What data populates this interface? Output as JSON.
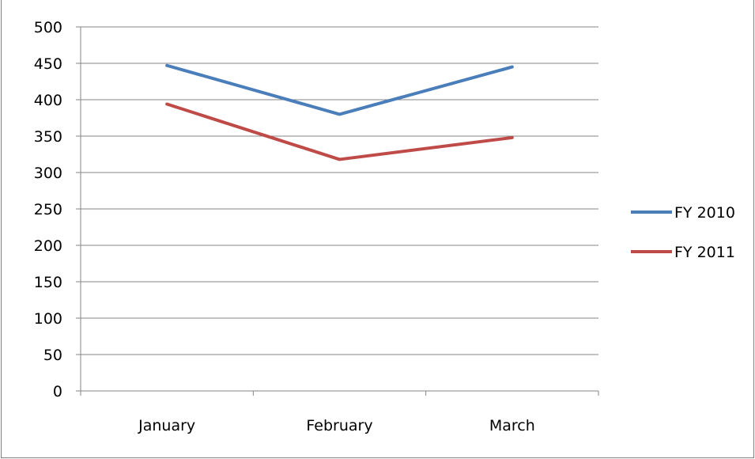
{
  "chart_data": {
    "type": "line",
    "title": "",
    "xlabel": "",
    "ylabel": "",
    "categories": [
      "January",
      "February",
      "March"
    ],
    "y_ticks": [
      "0",
      "50",
      "100",
      "150",
      "200",
      "250",
      "300",
      "350",
      "400",
      "450",
      "500"
    ],
    "ylim": [
      0,
      500
    ],
    "grid": true,
    "legend_position": "right",
    "series": [
      {
        "name": "FY 2010",
        "color": "#4a7ebb",
        "values": [
          447,
          380,
          445
        ]
      },
      {
        "name": "FY 2011",
        "color": "#be4b48",
        "values": [
          394,
          318,
          348
        ]
      }
    ]
  }
}
